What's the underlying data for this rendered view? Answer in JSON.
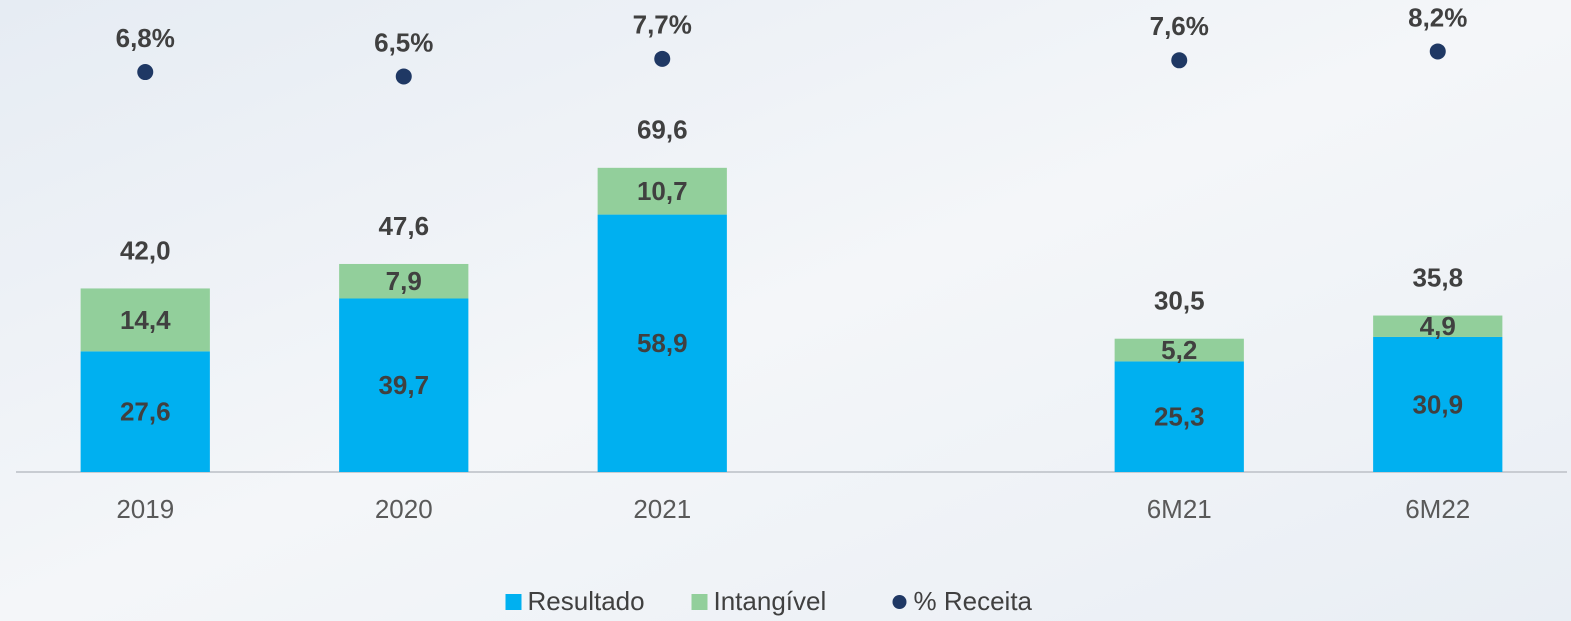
{
  "chart_data": {
    "type": "stacked_bar",
    "categories": [
      "2019",
      "2020",
      "2021",
      null,
      "6M21",
      "6M22"
    ],
    "series": [
      {
        "name": "Resultado",
        "color": "#00b0f0",
        "values": [
          27.6,
          39.7,
          58.9,
          null,
          25.3,
          30.9
        ],
        "value_labels": [
          "27,6",
          "39,7",
          "58,9",
          null,
          "25,3",
          "30,9"
        ]
      },
      {
        "name": "Intangível",
        "color": "#92cf9b",
        "values": [
          14.4,
          7.9,
          10.7,
          null,
          5.2,
          4.9
        ],
        "value_labels": [
          "14,4",
          "7,9",
          "10,7",
          null,
          "5,2",
          "4,9"
        ]
      },
      {
        "name": "% Receita",
        "color": "#1f3864",
        "axis": "y2",
        "values": [
          6.8,
          6.5,
          7.7,
          null,
          7.6,
          8.2
        ],
        "value_labels": [
          "6,8%",
          "6,5%",
          "7,7%",
          null,
          "7,6%",
          "8,2%"
        ]
      }
    ],
    "totals": {
      "values": [
        42.0,
        47.6,
        69.6,
        null,
        30.5,
        35.8
      ],
      "value_labels": [
        "42,0",
        "47,6",
        "69,6",
        null,
        "30,5",
        "35,8"
      ]
    },
    "ylim": [
      0,
      108
    ],
    "y2lim": [
      -20.4,
      11.7
    ],
    "legend": "bottom"
  }
}
